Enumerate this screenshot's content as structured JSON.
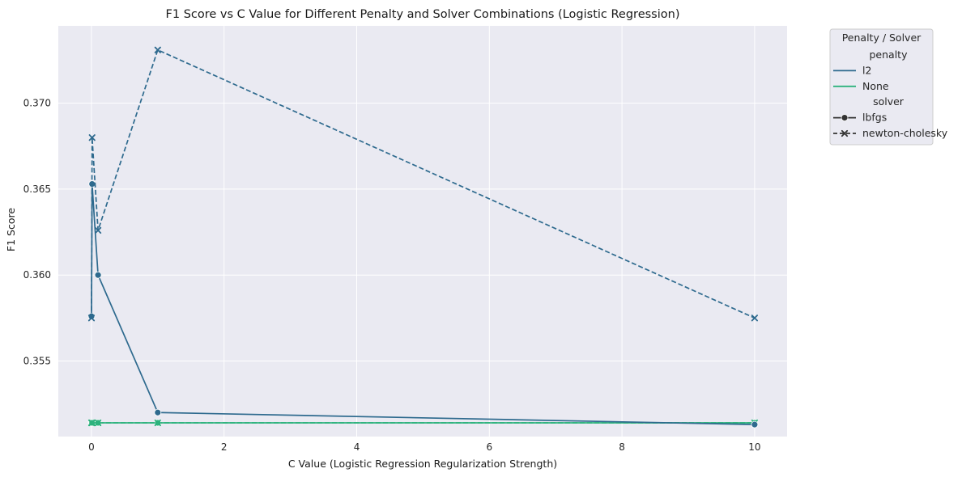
{
  "chart_data": {
    "type": "line",
    "title": "F1 Score vs C Value for Different Penalty and Solver Combinations (Logistic Regression)",
    "xlabel": "C Value (Logistic Regression Regularization Strength)",
    "ylabel": "F1 Score",
    "xlim": [
      -0.4995,
      10.4895
    ],
    "ylim": [
      0.3506,
      0.3745
    ],
    "xticks": [
      0,
      2,
      4,
      6,
      8,
      10
    ],
    "xtick_labels": [
      "0",
      "2",
      "4",
      "6",
      "8",
      "10"
    ],
    "yticks": [
      0.355,
      0.36,
      0.365,
      0.37
    ],
    "ytick_labels": [
      "0.355",
      "0.360",
      "0.365",
      "0.370"
    ],
    "grid": true,
    "legend": {
      "title": "Penalty / Solver",
      "placement": "outside-top-right",
      "sections": [
        {
          "heading": "penalty",
          "entries": [
            {
              "label": "l2",
              "color": "#2e6a8e",
              "kind": "color"
            },
            {
              "label": "None",
              "color": "#2db27d",
              "kind": "color"
            }
          ]
        },
        {
          "heading": "solver",
          "entries": [
            {
              "label": "lbfgs",
              "color": "#333333",
              "kind": "solid-circle"
            },
            {
              "label": "newton-cholesky",
              "color": "#333333",
              "kind": "dashed-x"
            }
          ]
        }
      ]
    },
    "series": [
      {
        "penalty": "l2",
        "solver": "lbfgs",
        "color": "#2e6a8e",
        "dash": "solid",
        "marker": "circle",
        "x": [
          0.001,
          0.01,
          0.1,
          1,
          10
        ],
        "y": [
          0.3576,
          0.3653,
          0.36,
          0.352,
          0.3513
        ]
      },
      {
        "penalty": "l2",
        "solver": "newton-cholesky",
        "color": "#2e6a8e",
        "dash": "dashed",
        "marker": "x",
        "x": [
          0.001,
          0.01,
          0.1,
          1,
          10
        ],
        "y": [
          0.3575,
          0.368,
          0.3626,
          0.3731,
          0.3575
        ]
      },
      {
        "penalty": "None",
        "solver": "lbfgs",
        "color": "#2db27d",
        "dash": "solid",
        "marker": "circle",
        "x": [
          0.001,
          0.01,
          0.1,
          1,
          10
        ],
        "y": [
          0.3514,
          0.3514,
          0.3514,
          0.3514,
          0.3514
        ]
      },
      {
        "penalty": "None",
        "solver": "newton-cholesky",
        "color": "#2db27d",
        "dash": "dashed",
        "marker": "x",
        "x": [
          0.001,
          0.01,
          0.1,
          1,
          10
        ],
        "y": [
          0.3514,
          0.3514,
          0.3514,
          0.3514,
          0.3514
        ]
      }
    ]
  }
}
